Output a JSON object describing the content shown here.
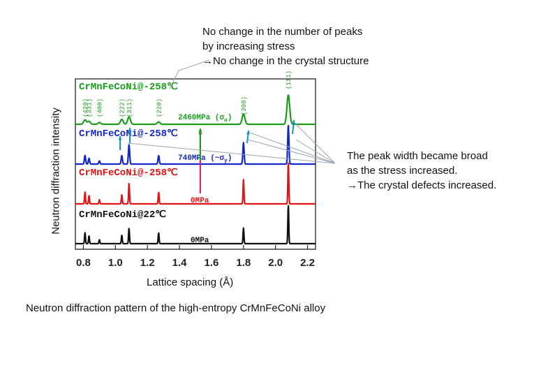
{
  "chart_data": {
    "type": "line",
    "xlabel": "Lattice spacing (Å)",
    "ylabel": "Neutron diffraction intensity",
    "xlim": [
      0.75,
      2.25
    ],
    "xticks": [
      "0.8",
      "1.0",
      "1.2",
      "1.4",
      "1.6",
      "1.8",
      "2.0",
      "2.2"
    ],
    "xtick_values": [
      0.8,
      1.0,
      1.2,
      1.4,
      1.6,
      1.8,
      2.0,
      2.2
    ],
    "grid": false,
    "peak_labels": [
      {
        "text": "(420)",
        "x": 0.81
      },
      {
        "text": "(331)",
        "x": 0.835
      },
      {
        "text": "(400)",
        "x": 0.9
      },
      {
        "text": "(222)",
        "x": 1.04
      },
      {
        "text": "(311)",
        "x": 1.085
      },
      {
        "text": "(220)",
        "x": 1.27
      },
      {
        "text": "(200)",
        "x": 1.8
      },
      {
        "text": "(111)",
        "x": 2.08
      }
    ],
    "series": [
      {
        "name": "CrMnFeCoNi@-258℃",
        "stress_label": "2460MPa (σ",
        "stress_sub": "u",
        "color": "#1a9e1a",
        "peak_widths": 0.012,
        "peaks": [
          {
            "x": 0.81,
            "h": 0.15
          },
          {
            "x": 0.835,
            "h": 0.1
          },
          {
            "x": 0.9,
            "h": 0.06
          },
          {
            "x": 1.04,
            "h": 0.17
          },
          {
            "x": 1.085,
            "h": 0.25
          },
          {
            "x": 1.27,
            "h": 0.08
          },
          {
            "x": 1.8,
            "h": 0.35
          },
          {
            "x": 2.08,
            "h": 1.0
          }
        ]
      },
      {
        "name": "CrMnFeCoNi@-258℃",
        "stress_label": "740MPa (~σ",
        "stress_sub": "y",
        "color": "#1428c8",
        "peak_widths": 0.0055,
        "peaks": [
          {
            "x": 0.81,
            "h": 0.22
          },
          {
            "x": 0.835,
            "h": 0.15
          },
          {
            "x": 0.9,
            "h": 0.08
          },
          {
            "x": 1.04,
            "h": 0.22
          },
          {
            "x": 1.085,
            "h": 0.5
          },
          {
            "x": 1.27,
            "h": 0.22
          },
          {
            "x": 1.8,
            "h": 0.55
          },
          {
            "x": 2.08,
            "h": 1.0
          }
        ]
      },
      {
        "name": "CrMnFeCoNi@-258℃",
        "stress_label": "0MPa",
        "stress_sub": "",
        "color": "#e01414",
        "peak_widths": 0.004,
        "peaks": [
          {
            "x": 0.81,
            "h": 0.28
          },
          {
            "x": 0.835,
            "h": 0.2
          },
          {
            "x": 0.9,
            "h": 0.1
          },
          {
            "x": 1.04,
            "h": 0.22
          },
          {
            "x": 1.085,
            "h": 0.5
          },
          {
            "x": 1.27,
            "h": 0.28
          },
          {
            "x": 1.8,
            "h": 0.58
          },
          {
            "x": 2.08,
            "h": 1.0
          }
        ]
      },
      {
        "name": "CrMnFeCoNi@22℃",
        "stress_label": "0MPa",
        "stress_sub": "",
        "color": "#111111",
        "peak_widths": 0.004,
        "peaks": [
          {
            "x": 0.81,
            "h": 0.28
          },
          {
            "x": 0.835,
            "h": 0.2
          },
          {
            "x": 0.9,
            "h": 0.1
          },
          {
            "x": 1.04,
            "h": 0.22
          },
          {
            "x": 1.085,
            "h": 0.4
          },
          {
            "x": 1.27,
            "h": 0.28
          },
          {
            "x": 1.8,
            "h": 0.4
          },
          {
            "x": 2.08,
            "h": 1.0
          }
        ]
      }
    ]
  },
  "annotations": {
    "top_lines": [
      "No change in the number of peaks",
      "by increasing stress",
      "→No change in the crystal structure"
    ],
    "right_lines": [
      "The peak width became broad",
      "as the stress increased.",
      "→The crystal defects increased."
    ]
  },
  "caption": "Neutron diffraction pattern of the high-entropy CrMnFeCoNi alloy",
  "colors": {
    "arrow_green": "#1a9e1a",
    "arrow_blue": "#1a8fd0",
    "arrow_red": "#e01460",
    "pointer_gray": "#9aa4ae"
  }
}
